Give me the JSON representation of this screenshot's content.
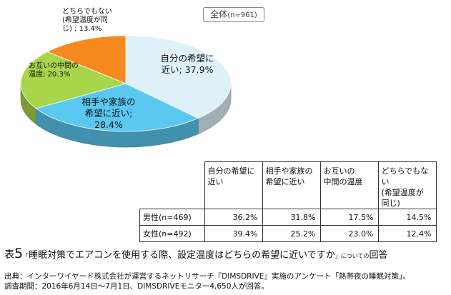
{
  "chart_data": {
    "type": "pie",
    "subset_label_main": "全体",
    "subset_label_n": "(n=961)",
    "slices": [
      {
        "label_lines": [
          "自分の希望に",
          "近い; 37.9%"
        ],
        "value": 37.9,
        "color": "#dff1f8"
      },
      {
        "label_lines": [
          "相手や家族の",
          "希望に近い;",
          "28.4%"
        ],
        "value": 28.4,
        "color": "#5ac8f0"
      },
      {
        "label_lines": [
          "お互いの中間の",
          "温度; 20.3%"
        ],
        "value": 20.3,
        "color": "#a8d64a"
      },
      {
        "label_lines": [
          "どちらでもない",
          "(希望温度が同",
          "じ) ; 13.4%"
        ],
        "value": 13.4,
        "color": "#f5891f"
      }
    ]
  },
  "table": {
    "headers": [
      [
        "自分の希望に",
        "近い"
      ],
      [
        "相手や家族の",
        "希望に近い"
      ],
      [
        "お互いの",
        "中間の温度"
      ],
      [
        "どちらでもない",
        "(希望温度が",
        "同じ)"
      ]
    ],
    "rows": [
      {
        "label": "男性(n=469)",
        "values": [
          "36.2%",
          "31.8%",
          "17.5%",
          "14.5%"
        ]
      },
      {
        "label": "女性(n=492)",
        "values": [
          "39.4%",
          "25.2%",
          "23.0%",
          "12.4%"
        ]
      }
    ]
  },
  "caption": {
    "prefix": "表",
    "number": "5",
    "open": "「",
    "main": "睡眠対策でエアコンを使用する際、設定温度はどちらの希望に近いですか",
    "close": "」",
    "suffix_small": "についての",
    "suffix": "回答"
  },
  "source": {
    "line1": "出典：インターワイヤード株式会社が運営するネットリサーチ『DIMSDRIVE』実施のアンケート「熱帯夜の睡眠対策」。",
    "line2": "調査期間：2016年6月14日〜7月1日、DIMSDRIVEモニター4,650人が回答。"
  }
}
